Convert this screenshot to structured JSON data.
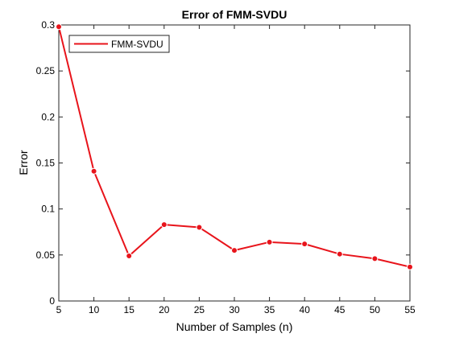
{
  "chart_data": {
    "type": "line",
    "title": "Error of FMM-SVDU",
    "xlabel": "Number of Samples (n)",
    "ylabel": "Error",
    "xlim": [
      5,
      55
    ],
    "ylim": [
      0,
      0.3
    ],
    "xticks": [
      "5",
      "10",
      "15",
      "20",
      "25",
      "30",
      "35",
      "40",
      "45",
      "50",
      "55"
    ],
    "yticks": [
      "0",
      "0.05",
      "0.1",
      "0.15",
      "0.2",
      "0.25",
      "0.3"
    ],
    "grid": false,
    "legend_position": "top-left",
    "series": [
      {
        "name": "FMM-SVDU",
        "color": "#e8141b",
        "x": [
          5,
          10,
          15,
          20,
          25,
          30,
          35,
          40,
          45,
          50,
          55
        ],
        "y": [
          0.298,
          0.141,
          0.049,
          0.083,
          0.08,
          0.055,
          0.064,
          0.062,
          0.051,
          0.046,
          0.037
        ]
      }
    ]
  }
}
